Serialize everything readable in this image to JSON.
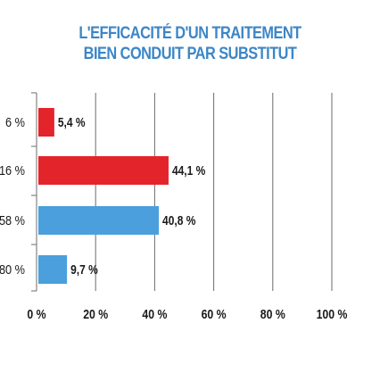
{
  "chart_data": {
    "type": "bar",
    "orientation": "horizontal",
    "title": [
      "L'EFFICACITÉ D'UN TRAITEMENT",
      "BIEN CONDUIT PAR SUBSTITUT"
    ],
    "categories": [
      "6 %",
      "16 %",
      "58 %",
      "80 %"
    ],
    "values": [
      5.4,
      44.1,
      40.8,
      9.7
    ],
    "value_labels": [
      "5,4 %",
      "44,1 %",
      "40,8 %",
      "9,7 %"
    ],
    "bar_colors": [
      "#e3242b",
      "#e3242b",
      "#4a9fdc",
      "#4a9fdc"
    ],
    "x_ticks": [
      0,
      20,
      40,
      60,
      80,
      100
    ],
    "x_tick_labels": [
      "0 %",
      "20 %",
      "40 %",
      "60 %",
      "80 %",
      "100 %"
    ],
    "xlim": [
      0,
      100
    ],
    "grid": true,
    "xlabel": "",
    "ylabel": ""
  },
  "colors": {
    "title": "#3c86c6",
    "grid": "#6b6b6b",
    "label": "#1a1a1a"
  }
}
